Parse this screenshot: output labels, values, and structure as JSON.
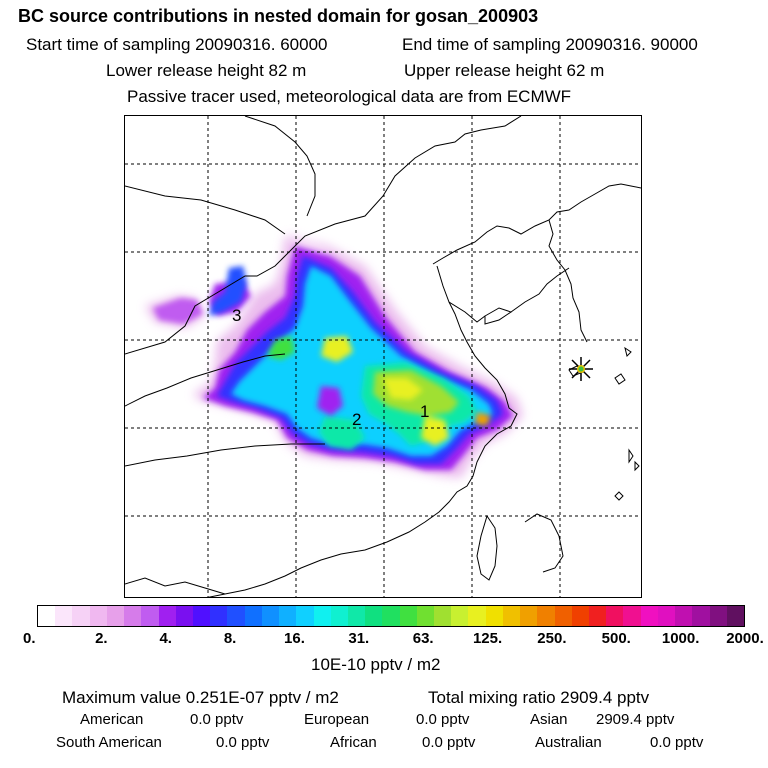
{
  "header": {
    "title": "BC  source contributions in nested domain for gosan_200903",
    "start_time": "Start time of sampling 20090316. 60000",
    "end_time": "End time of sampling 20090316. 90000",
    "lower_release": "Lower release height   82 m",
    "upper_release": "Upper release height   62 m",
    "note": "Passive tracer used, meteorological data are from ECMWF"
  },
  "map": {
    "region_labels": [
      "1",
      "2",
      "3"
    ],
    "receptor_marker": "star-marker",
    "gridlines": "dashed"
  },
  "colorbar": {
    "ticks": [
      "0.",
      "2.",
      "4.",
      "8.",
      "16.",
      "31.",
      "63.",
      "125.",
      "250.",
      "500.",
      "1000.",
      "2000."
    ],
    "unit": "10E-10 pptv / m2",
    "colors": [
      "#ffffff",
      "#fbe6fb",
      "#f6d2f6",
      "#f0b8f0",
      "#e7a0ea",
      "#d67cea",
      "#c05cf0",
      "#a020f0",
      "#7a10f0",
      "#5010ff",
      "#3030ff",
      "#2050ff",
      "#1070ff",
      "#1090ff",
      "#10b0ff",
      "#10d0ff",
      "#10f0f0",
      "#10f0d0",
      "#10e8a8",
      "#10e080",
      "#20e060",
      "#40e040",
      "#70e030",
      "#a0e030",
      "#c8f030",
      "#e8f020",
      "#f0e000",
      "#f0c000",
      "#f0a000",
      "#f08000",
      "#f06000",
      "#f04000",
      "#f02020",
      "#f01060",
      "#f01090",
      "#f010c0",
      "#e010c0",
      "#c010b0",
      "#a010a0",
      "#801080",
      "#601060"
    ]
  },
  "footer": {
    "max_value": "Maximum value  0.251E-07 pptv / m2",
    "total_mixing": "Total mixing ratio     2909.4 pptv",
    "american_label": "American",
    "american_value": "0.0 pptv",
    "european_label": "European",
    "european_value": "0.0 pptv",
    "asian_label": "Asian",
    "asian_value": "2909.4 pptv",
    "south_american_label": "South American",
    "south_american_value": "0.0 pptv",
    "african_label": "African",
    "african_value": "0.0 pptv",
    "australian_label": "Australian",
    "australian_value": "0.0 pptv"
  }
}
